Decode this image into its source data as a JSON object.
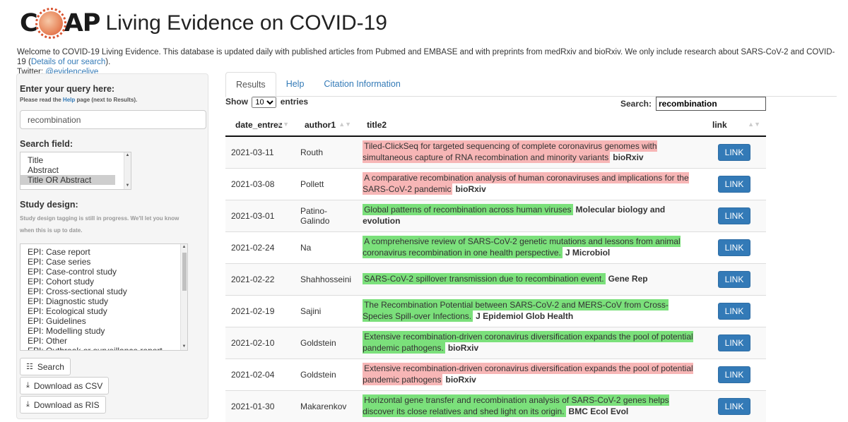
{
  "header": {
    "logo_text_left": "C",
    "logo_text_right": "AP",
    "title": "Living Evidence on COVID-19"
  },
  "welcome": {
    "text": "Welcome to COVID-19 Living Evidence. This database is updated daily with published articles from Pubmed and EMBASE and with preprints from medRxiv and bioRxiv. We only include research about SARS-CoV-2 and COVID-19 (",
    "details_link": "Details of our search",
    "text_end": ").",
    "twitter_label": "Twitter: ",
    "twitter_link": "@evidencelive"
  },
  "sidebar": {
    "query_label": "Enter your query here:",
    "query_note_pre": "Please read the ",
    "query_note_link": "Help",
    "query_note_post": " page (next to Results).",
    "query_value": "recombination",
    "search_field_label": "Search field:",
    "search_field_options": [
      "Title",
      "Abstract",
      "Title OR Abstract"
    ],
    "study_design_label": "Study design:",
    "study_design_note": "Study design tagging is still in progress. We'll let you know when this is up to date.",
    "study_design_options": [
      "EPI: Case report",
      "EPI: Case series",
      "EPI: Case-control study",
      "EPI: Cohort study",
      "EPI: Cross-sectional study",
      "EPI: Diagnostic study",
      "EPI: Ecological study",
      "EPI: Guidelines",
      "EPI: Modelling study",
      "EPI: Other",
      "EPI: Outbreak or surveillance report"
    ],
    "search_button": "Search",
    "csv_button": "Download as CSV",
    "ris_button": "Download as RIS"
  },
  "tabs": [
    "Results",
    "Help",
    "Citation Information"
  ],
  "controls": {
    "show_label": "Show",
    "page_size": "10",
    "entries_label": "entries",
    "search_label": "Search:",
    "search_value": "recombination"
  },
  "table": {
    "headers": [
      "date_entrez",
      "author1",
      "title2",
      "link"
    ],
    "link_label": "LINK",
    "rows": [
      {
        "date": "2021-03-11",
        "author": "Routh",
        "title": "Tiled-ClickSeq for targeted sequencing of complete coronavirus genomes with simultaneous capture of RNA recombination and minority variants",
        "journal": "bioRxiv",
        "hl": "red"
      },
      {
        "date": "2021-03-08",
        "author": "Pollett",
        "title": "A comparative recombination analysis of human coronaviruses and implications for the SARS-CoV-2 pandemic",
        "journal": "bioRxiv",
        "hl": "red"
      },
      {
        "date": "2021-03-01",
        "author": "Patino-Galindo",
        "title": "Global patterns of recombination across human viruses",
        "journal": "Molecular biology and evolution",
        "hl": "green"
      },
      {
        "date": "2021-02-24",
        "author": "Na",
        "title": "A comprehensive review of SARS-CoV-2 genetic mutations and lessons from animal coronavirus recombination in one health perspective.",
        "journal": "J Microbiol",
        "hl": "green"
      },
      {
        "date": "2021-02-22",
        "author": "Shahhosseini",
        "title": "SARS-CoV-2 spillover transmission due to recombination event.",
        "journal": "Gene Rep",
        "hl": "green"
      },
      {
        "date": "2021-02-19",
        "author": "Sajini",
        "title": "The Recombination Potential between SARS-CoV-2 and MERS-CoV from Cross-Species Spill-over Infections.",
        "journal": "J Epidemiol Glob Health",
        "hl": "green"
      },
      {
        "date": "2021-02-10",
        "author": "Goldstein",
        "title": "Extensive recombination-driven coronavirus diversification expands the pool of potential pandemic pathogens.",
        "journal": "bioRxiv",
        "hl": "green"
      },
      {
        "date": "2021-02-04",
        "author": "Goldstein",
        "title": "Extensive recombination-driven coronavirus diversification expands the pool of potential pandemic pathogens",
        "journal": "bioRxiv",
        "hl": "red"
      },
      {
        "date": "2021-01-30",
        "author": "Makarenkov",
        "title": "Horizontal gene transfer and recombination analysis of SARS-CoV-2 genes helps discover its close relatives and shed light on its origin.",
        "journal": "BMC Ecol Evol",
        "hl": "green"
      }
    ]
  },
  "colors": {
    "link": "#337ab7",
    "highlight_red": "#f7b6b6",
    "highlight_green": "#7be07b",
    "button_blue": "#337ab7"
  }
}
